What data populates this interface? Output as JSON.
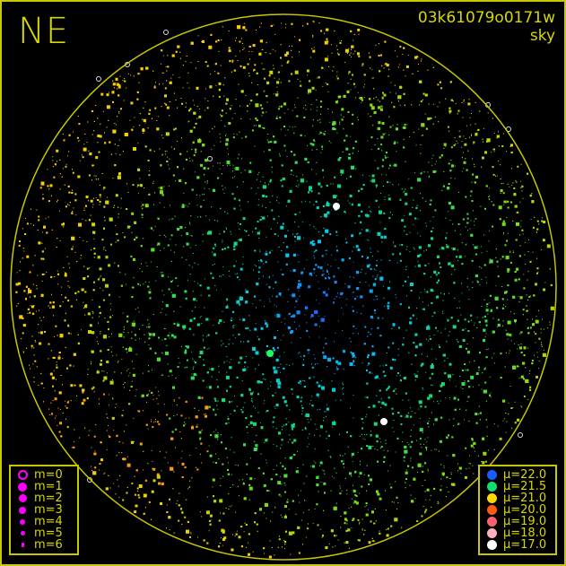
{
  "title": {
    "direction": "NE",
    "frame_id": "03k61079o0171w",
    "subtitle": "sky"
  },
  "colors": {
    "frame": "#c8c800",
    "text": "#d8d800",
    "magnitude_marker": "#ff00ff"
  },
  "magnitude_legend": [
    {
      "label": "m=0",
      "style": "ring"
    },
    {
      "label": "m=1"
    },
    {
      "label": "m=2"
    },
    {
      "label": "m=3"
    },
    {
      "label": "m=4"
    },
    {
      "label": "m=5"
    },
    {
      "label": "m=6"
    }
  ],
  "brightness_legend": [
    {
      "label": "μ=22.0",
      "color": "#1a5cff"
    },
    {
      "label": "μ=21.5",
      "color": "#10e070"
    },
    {
      "label": "μ=21.0",
      "color": "#ffd800"
    },
    {
      "label": "μ=20.0",
      "color": "#ff5a10"
    },
    {
      "label": "μ=19.0",
      "color": "#ff6070"
    },
    {
      "label": "μ=18.0",
      "color": "#ffb0c0"
    },
    {
      "label": "μ=17.0",
      "color": "#ffffff"
    }
  ]
}
